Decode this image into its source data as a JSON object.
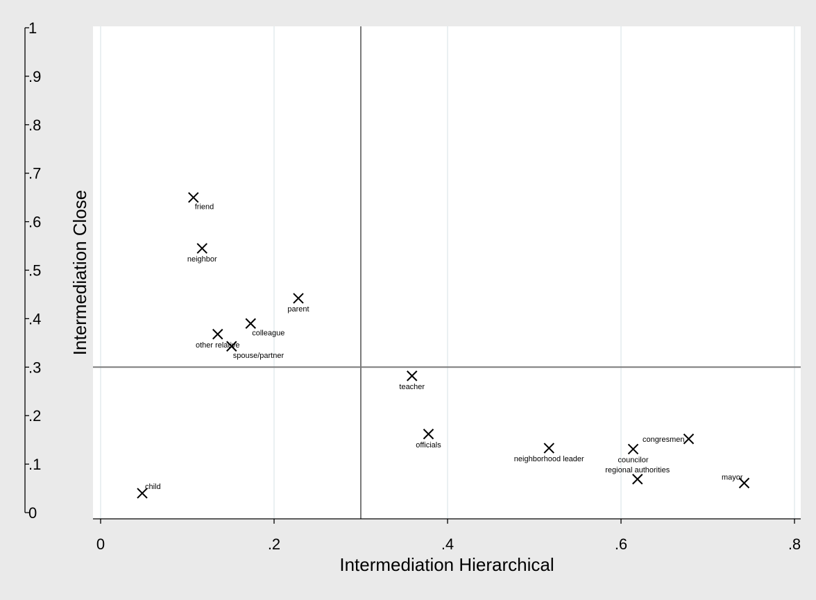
{
  "chart_data": {
    "type": "scatter",
    "xlabel": "Intermediation Hierarchical",
    "ylabel": "Intermediation Close",
    "xlim": [
      0,
      0.8
    ],
    "ylim": [
      0,
      1
    ],
    "x_ticks": [
      {
        "value": 0,
        "label": "0"
      },
      {
        "value": 0.2,
        "label": ".2"
      },
      {
        "value": 0.4,
        "label": ".4"
      },
      {
        "value": 0.6,
        "label": ".6"
      },
      {
        "value": 0.8,
        "label": ".8"
      }
    ],
    "y_ticks": [
      {
        "value": 0,
        "label": "0"
      },
      {
        "value": 0.1,
        "label": ".1"
      },
      {
        "value": 0.2,
        "label": ".2"
      },
      {
        "value": 0.3,
        "label": ".3"
      },
      {
        "value": 0.4,
        "label": ".4"
      },
      {
        "value": 0.5,
        "label": ".5"
      },
      {
        "value": 0.6,
        "label": ".6"
      },
      {
        "value": 0.7,
        "label": ".7"
      },
      {
        "value": 0.8,
        "label": ".8"
      },
      {
        "value": 0.9,
        "label": ".9"
      },
      {
        "value": 1,
        "label": "1"
      }
    ],
    "grid": "vertical",
    "reference_lines": {
      "x": 0.3,
      "y": 0.3
    },
    "marker": "x",
    "points": [
      {
        "label": "friend",
        "x": 0.107,
        "y": 0.65,
        "label_pos": "below-right"
      },
      {
        "label": "neighbor",
        "x": 0.117,
        "y": 0.545,
        "label_pos": "below"
      },
      {
        "label": "parent",
        "x": 0.228,
        "y": 0.442,
        "label_pos": "below"
      },
      {
        "label": "colleague",
        "x": 0.173,
        "y": 0.39,
        "label_pos": "below-right"
      },
      {
        "label": "other relative",
        "x": 0.135,
        "y": 0.368,
        "label_pos": "below"
      },
      {
        "label": "spouse/partner",
        "x": 0.151,
        "y": 0.343,
        "label_pos": "below-right"
      },
      {
        "label": "teacher",
        "x": 0.359,
        "y": 0.282,
        "label_pos": "below"
      },
      {
        "label": "officials",
        "x": 0.378,
        "y": 0.162,
        "label_pos": "below"
      },
      {
        "label": "neighborhood leader",
        "x": 0.517,
        "y": 0.133,
        "label_pos": "below"
      },
      {
        "label": "councilor",
        "x": 0.614,
        "y": 0.131,
        "label_pos": "below"
      },
      {
        "label": "congresmen",
        "x": 0.678,
        "y": 0.152,
        "label_pos": "left"
      },
      {
        "label": "regional authorities",
        "x": 0.619,
        "y": 0.069,
        "label_pos": "above"
      },
      {
        "label": "mayor",
        "x": 0.742,
        "y": 0.061,
        "label_pos": "above-left"
      },
      {
        "label": "child",
        "x": 0.048,
        "y": 0.04,
        "label_pos": "above-right"
      }
    ]
  }
}
